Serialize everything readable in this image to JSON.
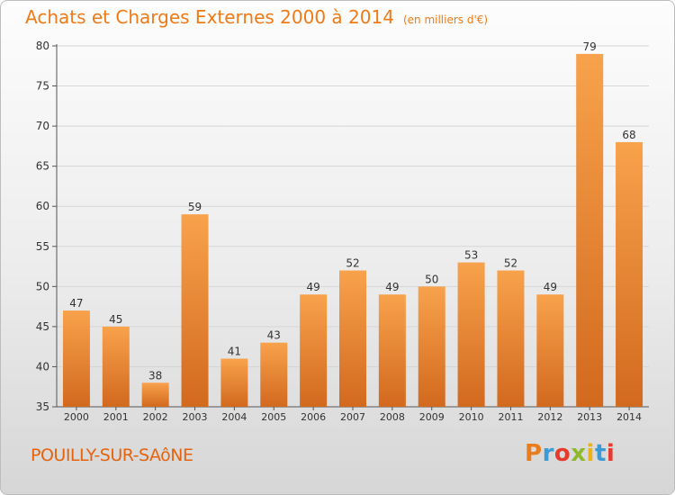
{
  "chart_data": {
    "type": "bar",
    "title": "Achats et Charges Externes 2000 à 2014",
    "subtitle": "(en milliers d'€)",
    "categories": [
      "2000",
      "2001",
      "2002",
      "2003",
      "2004",
      "2005",
      "2006",
      "2007",
      "2008",
      "2009",
      "2010",
      "2011",
      "2012",
      "2013",
      "2014"
    ],
    "values": [
      47,
      45,
      38,
      59,
      41,
      43,
      49,
      52,
      49,
      50,
      53,
      52,
      49,
      79,
      68
    ],
    "ylim": [
      35,
      80
    ],
    "yticks": [
      35,
      40,
      45,
      50,
      55,
      60,
      65,
      70,
      75,
      80
    ],
    "grid": true,
    "legend": "none",
    "bar_color_top": "#f8a24c",
    "bar_color_bottom": "#d2691e"
  },
  "footer": {
    "commune": "POUILLY-SUR-SAôNE",
    "logo": "Proxiti"
  },
  "colors": {
    "accent": "#f07a16",
    "grid": "#d6d6d6"
  }
}
